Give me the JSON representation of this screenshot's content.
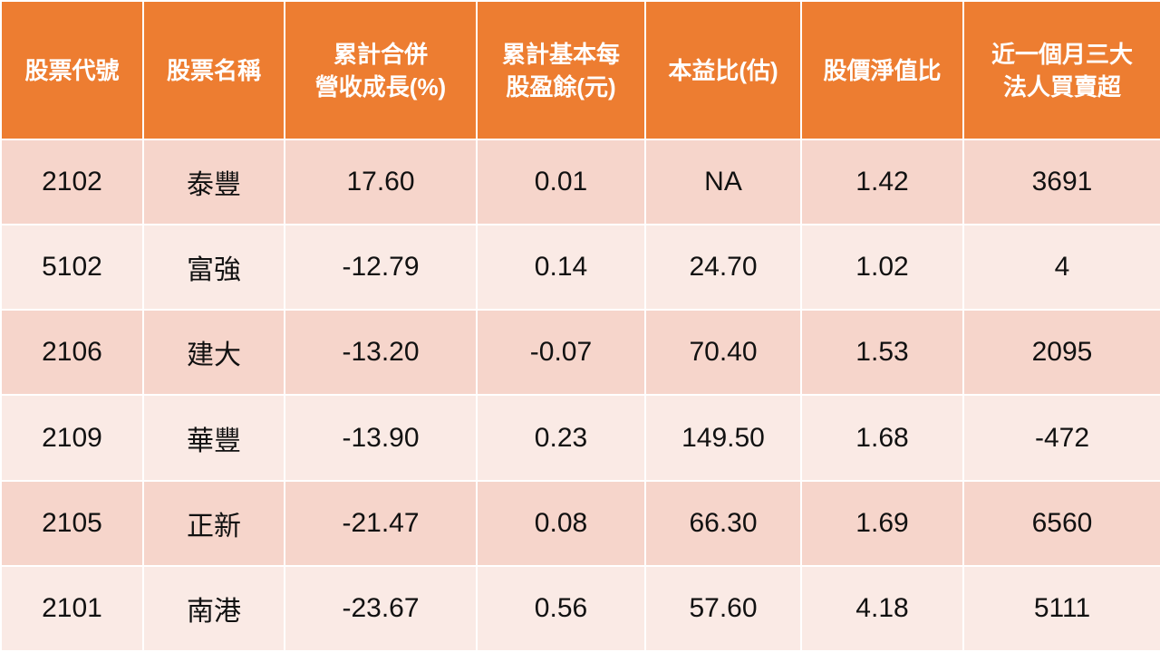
{
  "table": {
    "header": [
      [
        "股票代號"
      ],
      [
        "股票名稱"
      ],
      [
        "累計合併",
        "營收成長(%)"
      ],
      [
        "累計基本每",
        "股盈餘(元)"
      ],
      [
        "本益比(估)"
      ],
      [
        "股價淨值比"
      ],
      [
        "近一個月三大",
        "法人買賣超"
      ]
    ],
    "rows": [
      [
        "2102",
        "泰豐",
        "17.60",
        "0.01",
        "NA",
        "1.42",
        "3691"
      ],
      [
        "5102",
        "富強",
        "-12.79",
        "0.14",
        "24.70",
        "1.02",
        "4"
      ],
      [
        "2106",
        "建大",
        "-13.20",
        "-0.07",
        "70.40",
        "1.53",
        "2095"
      ],
      [
        "2109",
        "華豐",
        "-13.90",
        "0.23",
        "149.50",
        "1.68",
        "-472"
      ],
      [
        "2105",
        "正新",
        "-21.47",
        "0.08",
        "66.30",
        "1.69",
        "6560"
      ],
      [
        "2101",
        "南港",
        "-23.67",
        "0.56",
        "57.60",
        "4.18",
        "5111"
      ]
    ]
  }
}
